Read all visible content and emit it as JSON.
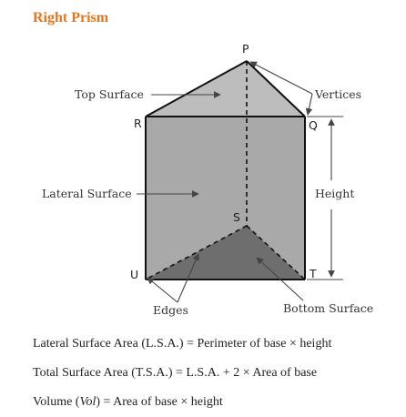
{
  "title": "Right Prism",
  "vertices": {
    "p": "P",
    "q": "Q",
    "r": "R",
    "s": "S",
    "t": "T",
    "u": "U"
  },
  "labels": {
    "top_surface": "Top Surface",
    "lateral_surface": "Lateral  Surface",
    "vertices": "Vertices",
    "height": "Height",
    "edges": "Edges",
    "bottom_surface": "Bottom Surface"
  },
  "formulas": {
    "lsa": "Lateral Surface Area (L.S.A.) = Perimeter of base × height",
    "tsa": "Total Surface Area (T.S.A.) = L.S.A. + 2 × Area of base",
    "volume_prefix": "Volume (",
    "volume_var": "Vol",
    "volume_suffix": ") = Area of base × height"
  },
  "colors": {
    "title": "#e8751a",
    "top_face": "#bdbdbd",
    "lateral_face": "#a9a9a9",
    "bottom_face": "#6e6e6e",
    "edge": "#111111"
  }
}
